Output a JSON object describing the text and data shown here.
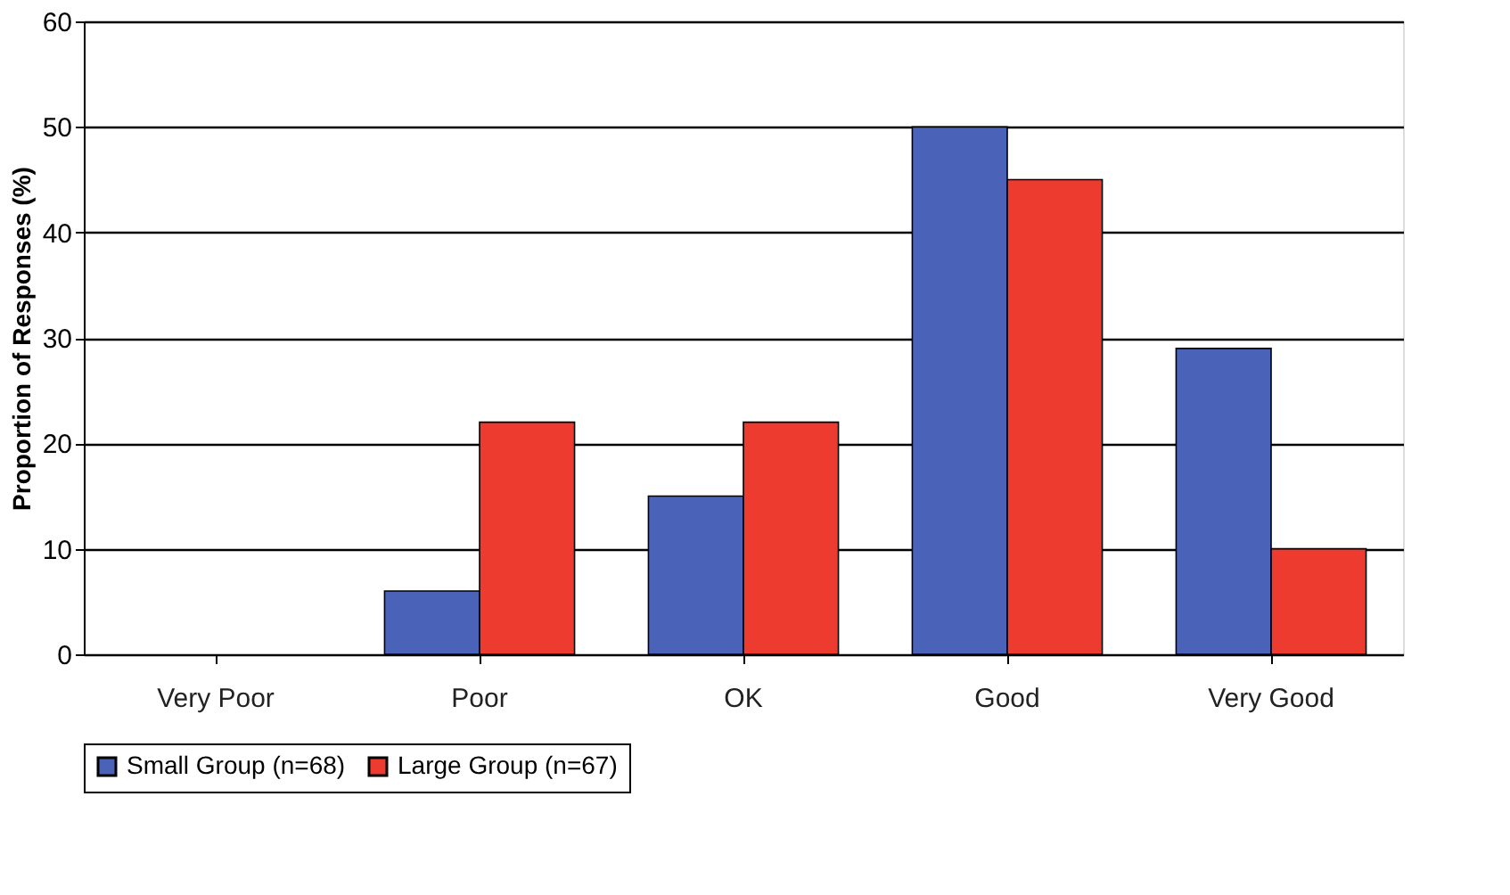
{
  "chart_data": {
    "type": "bar",
    "ylabel": "Proportion of Responses (%)",
    "categories": [
      "Very Poor",
      "Poor",
      "OK",
      "Good",
      "Very Good"
    ],
    "series": [
      {
        "name": "Small Group (n=68)",
        "color": "#4a63b8",
        "values": [
          0,
          6,
          15,
          50,
          29
        ]
      },
      {
        "name": "Large Group (n=67)",
        "color": "#ee3b30",
        "values": [
          0,
          22,
          22,
          45,
          10
        ]
      }
    ],
    "ylim": [
      0,
      60
    ],
    "yticks": [
      0,
      10,
      20,
      30,
      40,
      50,
      60
    ],
    "grid": "y",
    "legend": "bottom"
  }
}
